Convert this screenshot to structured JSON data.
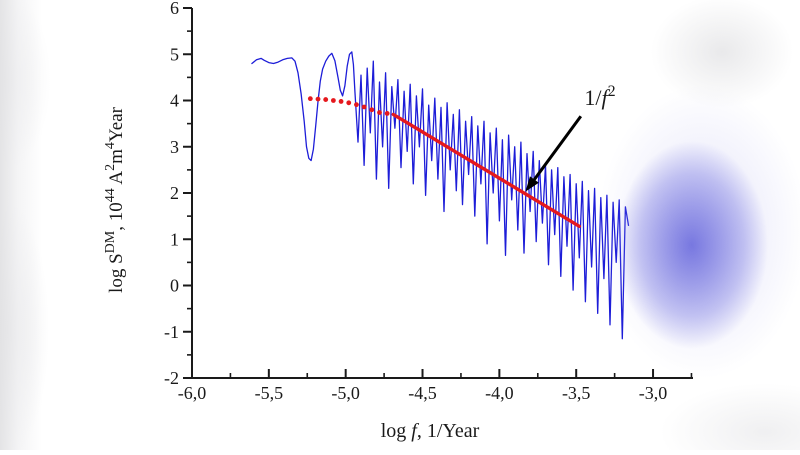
{
  "page": {
    "background": "#ffffff",
    "accents": {
      "glow_blue": "#4e4ed6",
      "edge_gray": "#e1e1e3"
    }
  },
  "chart_data": {
    "type": "line",
    "title": "",
    "xlabel": "log f, 1/Year",
    "xlabel_parts": [
      {
        "t": "log "
      },
      {
        "t": "f",
        "italic": true
      },
      {
        "t": ", 1/Year"
      }
    ],
    "ylabel": "log S^DM, 10^44 A^2m^4Year",
    "ylabel_parts": [
      {
        "t": "log S"
      },
      {
        "t": "DM",
        "sup": true
      },
      {
        "t": ", 10"
      },
      {
        "t": "44",
        "sup": true
      },
      {
        "t": " A"
      },
      {
        "t": "2",
        "sup": true
      },
      {
        "t": "m"
      },
      {
        "t": "4",
        "sup": true
      },
      {
        "t": "Year"
      }
    ],
    "xlim": [
      -6.0,
      -2.74
    ],
    "ylim": [
      -2,
      6
    ],
    "x_major_ticks": [
      -6.0,
      -5.5,
      -5.0,
      -4.5,
      -4.0,
      -3.5,
      -3.0
    ],
    "x_tick_labels": [
      "-6,0",
      "-5,5",
      "-5,0",
      "-4,5",
      "-4,0",
      "-3,5",
      "-3,0"
    ],
    "x_minor_step": 0.25,
    "y_major_ticks": [
      6,
      5,
      4,
      3,
      2,
      1,
      0,
      -1,
      -2
    ],
    "y_tick_labels": [
      "6",
      "5",
      "4",
      "3",
      "2",
      "1",
      "0",
      "-1",
      "-2"
    ],
    "y_minor_step": 0.5,
    "grid": false,
    "legend_position": "none",
    "axis_color": "#1a1a1a",
    "series": [
      {
        "name": "dm-power-spectrum",
        "color": "#1d1dd8",
        "style": "solid",
        "width": 1.3,
        "points": [
          [
            -5.61,
            4.8
          ],
          [
            -5.58,
            4.88
          ],
          [
            -5.55,
            4.91
          ],
          [
            -5.53,
            4.87
          ],
          [
            -5.5,
            4.82
          ],
          [
            -5.47,
            4.8
          ],
          [
            -5.44,
            4.83
          ],
          [
            -5.41,
            4.88
          ],
          [
            -5.38,
            4.91
          ],
          [
            -5.35,
            4.92
          ],
          [
            -5.33,
            4.85
          ],
          [
            -5.31,
            4.6
          ],
          [
            -5.29,
            4.15
          ],
          [
            -5.27,
            3.55
          ],
          [
            -5.255,
            3.0
          ],
          [
            -5.24,
            2.75
          ],
          [
            -5.225,
            2.7
          ],
          [
            -5.21,
            2.95
          ],
          [
            -5.195,
            3.45
          ],
          [
            -5.18,
            3.98
          ],
          [
            -5.165,
            4.42
          ],
          [
            -5.15,
            4.68
          ],
          [
            -5.13,
            4.85
          ],
          [
            -5.11,
            4.96
          ],
          [
            -5.09,
            5.02
          ],
          [
            -5.07,
            4.86
          ],
          [
            -5.05,
            4.5
          ],
          [
            -5.035,
            4.22
          ],
          [
            -5.02,
            4.1
          ],
          [
            -5.005,
            4.32
          ],
          [
            -4.99,
            4.74
          ],
          [
            -4.975,
            5.0
          ],
          [
            -4.96,
            5.05
          ],
          [
            -4.95,
            4.78
          ],
          [
            -4.94,
            4.2
          ],
          [
            -4.92,
            3.1
          ],
          [
            -4.9,
            4.55
          ],
          [
            -4.88,
            2.6
          ],
          [
            -4.86,
            4.7
          ],
          [
            -4.84,
            3.3
          ],
          [
            -4.82,
            4.85
          ],
          [
            -4.8,
            2.3
          ],
          [
            -4.78,
            4.4
          ],
          [
            -4.76,
            3.0
          ],
          [
            -4.74,
            4.6
          ],
          [
            -4.72,
            2.1
          ],
          [
            -4.7,
            4.3
          ],
          [
            -4.68,
            3.4
          ],
          [
            -4.66,
            4.45
          ],
          [
            -4.64,
            2.55
          ],
          [
            -4.62,
            4.2
          ],
          [
            -4.6,
            2.9
          ],
          [
            -4.58,
            4.35
          ],
          [
            -4.56,
            2.2
          ],
          [
            -4.54,
            4.1
          ],
          [
            -4.52,
            3.0
          ],
          [
            -4.5,
            4.25
          ],
          [
            -4.48,
            1.95
          ],
          [
            -4.46,
            3.9
          ],
          [
            -4.44,
            2.7
          ],
          [
            -4.42,
            4.05
          ],
          [
            -4.4,
            2.3
          ],
          [
            -4.38,
            3.85
          ],
          [
            -4.36,
            1.6
          ],
          [
            -4.34,
            3.95
          ],
          [
            -4.32,
            2.5
          ],
          [
            -4.3,
            3.7
          ],
          [
            -4.28,
            2.05
          ],
          [
            -4.26,
            3.8
          ],
          [
            -4.24,
            1.75
          ],
          [
            -4.22,
            3.55
          ],
          [
            -4.2,
            2.4
          ],
          [
            -4.18,
            3.65
          ],
          [
            -4.16,
            1.5
          ],
          [
            -4.14,
            3.45
          ],
          [
            -4.12,
            2.2
          ],
          [
            -4.1,
            3.55
          ],
          [
            -4.08,
            0.9
          ],
          [
            -4.06,
            3.3
          ],
          [
            -4.04,
            2.0
          ],
          [
            -4.02,
            3.4
          ],
          [
            -4.0,
            1.4
          ],
          [
            -3.98,
            3.15
          ],
          [
            -3.96,
            0.65
          ],
          [
            -3.94,
            3.25
          ],
          [
            -3.92,
            1.85
          ],
          [
            -3.9,
            3.0
          ],
          [
            -3.88,
            1.2
          ],
          [
            -3.86,
            3.1
          ],
          [
            -3.84,
            0.7
          ],
          [
            -3.82,
            2.85
          ],
          [
            -3.8,
            1.6
          ],
          [
            -3.78,
            2.9
          ],
          [
            -3.76,
            0.95
          ],
          [
            -3.74,
            2.7
          ],
          [
            -3.72,
            1.35
          ],
          [
            -3.7,
            2.6
          ],
          [
            -3.68,
            0.45
          ],
          [
            -3.66,
            2.5
          ],
          [
            -3.64,
            1.1
          ],
          [
            -3.62,
            2.55
          ],
          [
            -3.6,
            0.2
          ],
          [
            -3.58,
            2.35
          ],
          [
            -3.56,
            0.85
          ],
          [
            -3.54,
            2.4
          ],
          [
            -3.52,
            -0.1
          ],
          [
            -3.5,
            2.2
          ],
          [
            -3.48,
            0.6
          ],
          [
            -3.46,
            2.25
          ],
          [
            -3.44,
            -0.35
          ],
          [
            -3.42,
            2.05
          ],
          [
            -3.4,
            0.4
          ],
          [
            -3.38,
            2.1
          ],
          [
            -3.36,
            -0.6
          ],
          [
            -3.34,
            1.9
          ],
          [
            -3.32,
            0.15
          ],
          [
            -3.3,
            1.95
          ],
          [
            -3.28,
            -0.85
          ],
          [
            -3.26,
            1.8
          ],
          [
            -3.24,
            0.5
          ],
          [
            -3.22,
            1.85
          ],
          [
            -3.2,
            -1.15
          ],
          [
            -3.18,
            1.7
          ],
          [
            -3.16,
            1.3
          ]
        ]
      },
      {
        "name": "fit-extrapolation-dotted",
        "color": "#e5181d",
        "style": "dotted",
        "dot_radius": 2.4,
        "points": [
          [
            -5.23,
            4.04
          ],
          [
            -5.18,
            4.03
          ],
          [
            -5.13,
            4.02
          ],
          [
            -5.08,
            4.0
          ],
          [
            -5.03,
            3.98
          ],
          [
            -4.98,
            3.95
          ],
          [
            -4.93,
            3.91
          ],
          [
            -4.88,
            3.86
          ],
          [
            -4.83,
            3.8
          ],
          [
            -4.78,
            3.74
          ],
          [
            -4.73,
            3.72
          ]
        ]
      },
      {
        "name": "one-over-f-squared-fit",
        "color": "#e5181d",
        "style": "solid",
        "width": 3.4,
        "points": [
          [
            -4.69,
            3.7
          ],
          [
            -3.48,
            1.28
          ]
        ]
      }
    ],
    "annotation": {
      "label_text": "1/f²",
      "label_parts": [
        {
          "t": "1/"
        },
        {
          "t": "f",
          "italic": true
        },
        {
          "t": "2",
          "sup": true
        }
      ],
      "x": -3.345,
      "y": 4.08,
      "arrow": {
        "from": [
          -3.47,
          3.66
        ],
        "to": [
          -3.83,
          2.03
        ],
        "color": "#000000"
      }
    }
  }
}
